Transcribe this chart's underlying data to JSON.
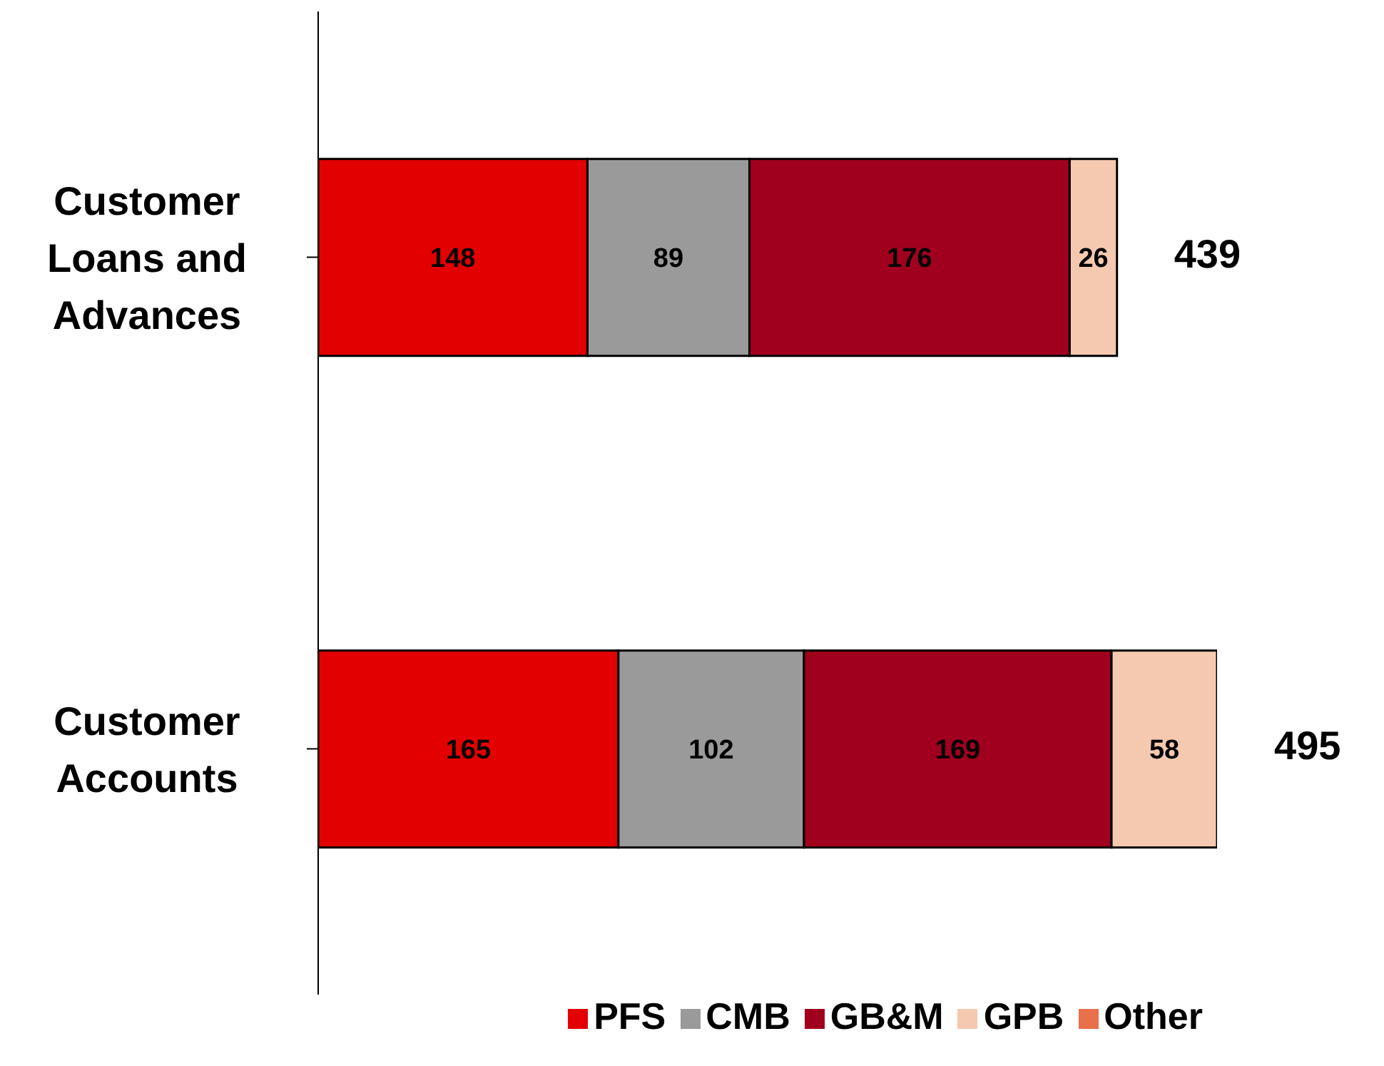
{
  "chart_data": {
    "type": "bar",
    "orientation": "horizontal",
    "stacked": true,
    "categories": [
      "Customer Loans and Advances",
      "Customer Accounts"
    ],
    "series": [
      {
        "name": "PFS",
        "color": "#e30000",
        "values": [
          148,
          165
        ]
      },
      {
        "name": "CMB",
        "color": "#9a9a9a",
        "values": [
          89,
          102
        ]
      },
      {
        "name": "GB&M",
        "color": "#a0001e",
        "values": [
          176,
          169
        ]
      },
      {
        "name": "GPB",
        "color": "#f5c9b0",
        "values": [
          26,
          58
        ]
      },
      {
        "name": "Other",
        "color": "#e8704a",
        "values": [
          null,
          null
        ]
      }
    ],
    "data_labels": true,
    "totals": [
      "439",
      "495"
    ],
    "tick_labels": "y",
    "legend": "bottom",
    "grid": false
  }
}
